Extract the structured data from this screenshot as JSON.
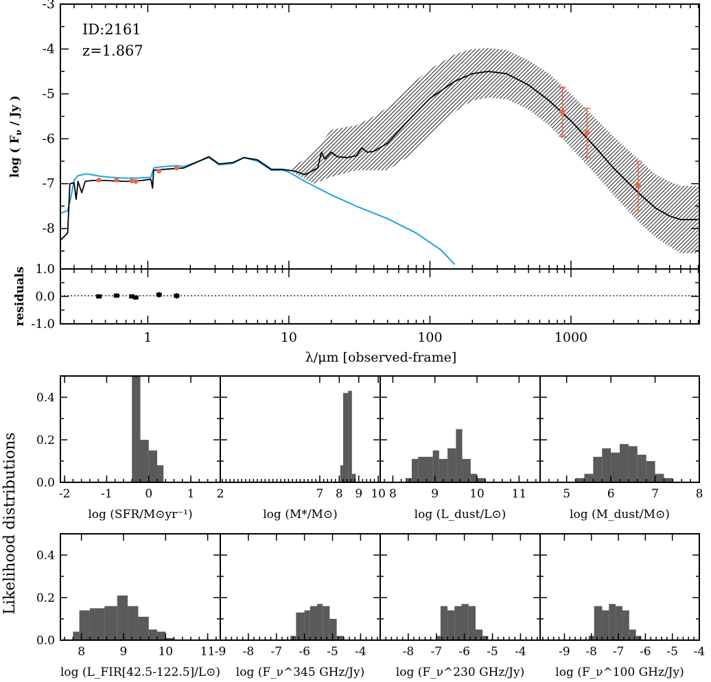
{
  "chart_data": {
    "type": "sed_fit",
    "sed": {
      "object_id": "ID:2161",
      "redshift": "z=1.867",
      "ylabel": "log ( F_ν / Jy )",
      "ylabel_parts": {
        "pre": "log ( F",
        "sub": "ν",
        "post": " / Jy )"
      },
      "ylim": [
        -8.9,
        -3
      ],
      "yticks": [
        "-3",
        "-4",
        "-5",
        "-6",
        "-7",
        "-8"
      ],
      "xlim_log10": [
        -0.62,
        3.91
      ],
      "xlabel": "λ/μm  [observed-frame]",
      "xticks": [
        {
          "v": 1,
          "label": "1"
        },
        {
          "v": 10,
          "label": "10"
        },
        {
          "v": 100,
          "label": "100"
        },
        {
          "v": 1000,
          "label": "1000"
        }
      ],
      "colors": {
        "total": "#000000",
        "stellar": "#1fa2e0",
        "points": "#e8684a",
        "band": "#4a4a4a"
      },
      "stellar_curve": [
        [
          0.24,
          -7.66
        ],
        [
          0.27,
          -7.6
        ],
        [
          0.285,
          -7.3
        ],
        [
          0.3,
          -6.92
        ],
        [
          0.32,
          -6.82
        ],
        [
          0.37,
          -6.78
        ],
        [
          0.4,
          -6.8
        ],
        [
          0.45,
          -6.83
        ],
        [
          0.55,
          -6.86
        ],
        [
          0.7,
          -6.88
        ],
        [
          0.9,
          -6.87
        ],
        [
          1.05,
          -6.86
        ],
        [
          1.1,
          -6.65
        ],
        [
          1.3,
          -6.62
        ],
        [
          1.6,
          -6.6
        ],
        [
          1.8,
          -6.62
        ],
        [
          2.3,
          -6.5
        ],
        [
          2.7,
          -6.42
        ],
        [
          3.2,
          -6.58
        ],
        [
          4.0,
          -6.55
        ],
        [
          4.8,
          -6.42
        ],
        [
          6.0,
          -6.5
        ],
        [
          7.5,
          -6.7
        ],
        [
          9,
          -6.7
        ],
        [
          10,
          -6.74
        ],
        [
          13,
          -6.95
        ],
        [
          20,
          -7.25
        ],
        [
          30,
          -7.5
        ],
        [
          50,
          -7.78
        ],
        [
          80,
          -8.1
        ],
        [
          120,
          -8.48
        ],
        [
          150,
          -8.8
        ]
      ],
      "total_curve": [
        [
          0.24,
          -8.26
        ],
        [
          0.27,
          -8.1
        ],
        [
          0.28,
          -7.0
        ],
        [
          0.3,
          -6.98
        ],
        [
          0.31,
          -7.35
        ],
        [
          0.32,
          -6.95
        ],
        [
          0.34,
          -7.2
        ],
        [
          0.36,
          -6.95
        ],
        [
          0.4,
          -6.93
        ],
        [
          0.5,
          -6.93
        ],
        [
          0.7,
          -6.95
        ],
        [
          0.9,
          -6.93
        ],
        [
          1.05,
          -6.9
        ],
        [
          1.08,
          -7.1
        ],
        [
          1.1,
          -6.7
        ],
        [
          1.3,
          -6.68
        ],
        [
          1.6,
          -6.66
        ],
        [
          1.8,
          -6.65
        ],
        [
          2.3,
          -6.5
        ],
        [
          2.7,
          -6.4
        ],
        [
          3.2,
          -6.56
        ],
        [
          4.0,
          -6.53
        ],
        [
          4.8,
          -6.42
        ],
        [
          6.0,
          -6.47
        ],
        [
          7.5,
          -6.68
        ],
        [
          9,
          -6.68
        ],
        [
          10,
          -6.7
        ],
        [
          11,
          -6.72
        ],
        [
          13,
          -6.8
        ],
        [
          16,
          -6.65
        ],
        [
          17,
          -6.3
        ],
        [
          18,
          -6.45
        ],
        [
          20,
          -6.3
        ],
        [
          22,
          -6.4
        ],
        [
          26,
          -6.42
        ],
        [
          30,
          -6.38
        ],
        [
          33,
          -6.2
        ],
        [
          36,
          -6.3
        ],
        [
          40,
          -6.28
        ],
        [
          50,
          -6.1
        ],
        [
          70,
          -5.6
        ],
        [
          100,
          -5.1
        ],
        [
          150,
          -4.72
        ],
        [
          200,
          -4.55
        ],
        [
          260,
          -4.5
        ],
        [
          350,
          -4.55
        ],
        [
          500,
          -4.8
        ],
        [
          700,
          -5.15
        ],
        [
          1000,
          -5.6
        ],
        [
          1500,
          -6.2
        ],
        [
          2000,
          -6.65
        ],
        [
          3000,
          -7.2
        ],
        [
          4000,
          -7.55
        ],
        [
          5000,
          -7.72
        ],
        [
          6000,
          -7.8
        ],
        [
          8000,
          -7.8
        ]
      ],
      "uncertainty_band": {
        "x": [
          10,
          15,
          20,
          30,
          40,
          50,
          70,
          100,
          150,
          200,
          260,
          350,
          500,
          700,
          1000,
          1500,
          2000,
          3000,
          4000,
          5000,
          6000,
          8000
        ],
        "upper": [
          -6.7,
          -6.3,
          -5.8,
          -5.7,
          -5.5,
          -5.3,
          -4.85,
          -4.45,
          -4.12,
          -4.0,
          -3.98,
          -4.02,
          -4.25,
          -4.55,
          -5.0,
          -5.55,
          -5.95,
          -6.45,
          -6.8,
          -6.95,
          -7.05,
          -7.05
        ],
        "lower": [
          -6.7,
          -7.0,
          -6.85,
          -6.7,
          -6.7,
          -6.7,
          -6.4,
          -5.95,
          -5.4,
          -5.15,
          -5.08,
          -5.12,
          -5.35,
          -5.7,
          -6.2,
          -6.8,
          -7.25,
          -7.85,
          -8.2,
          -8.4,
          -8.55,
          -8.55
        ]
      },
      "optical_points": [
        {
          "x": 0.45,
          "y": -6.92
        },
        {
          "x": 0.6,
          "y": -6.92
        },
        {
          "x": 0.77,
          "y": -6.94
        },
        {
          "x": 0.82,
          "y": -6.95
        },
        {
          "x": 1.2,
          "y": -6.72
        },
        {
          "x": 1.6,
          "y": -6.65
        }
      ],
      "fir_points": [
        {
          "x": 870,
          "y": -5.4,
          "err": 0.55
        },
        {
          "x": 1300,
          "y": -5.87,
          "err": 0.55
        },
        {
          "x": 3000,
          "y": -7.05,
          "err": 0.55
        }
      ]
    },
    "residuals": {
      "ylabel": "residuals",
      "ylim": [
        -1.0,
        1.0
      ],
      "yticks": [
        "1.0",
        "0.0",
        "-1.0"
      ],
      "points": [
        {
          "x": 0.45,
          "y": 0.0,
          "err": 0.06
        },
        {
          "x": 0.6,
          "y": 0.03,
          "err": 0.06
        },
        {
          "x": 0.77,
          "y": 0.0,
          "err": 0.06
        },
        {
          "x": 0.82,
          "y": -0.04,
          "err": 0.06
        },
        {
          "x": 1.2,
          "y": 0.06,
          "err": 0.1
        },
        {
          "x": 1.6,
          "y": 0.02,
          "err": 0.1
        }
      ]
    },
    "likelihood": {
      "ylabel": "Likelihood distributions",
      "ylim": [
        0,
        0.5
      ],
      "yticks": [
        "0.4",
        "0.2",
        "0.0"
      ],
      "panels": [
        {
          "xlabel": "log (SFR/M⊙yr⁻¹)",
          "xlim": [
            -2.1,
            1.7
          ],
          "ticks": [
            "-2",
            "-1",
            "0",
            "1"
          ],
          "tick_values": [
            -2,
            -1,
            0,
            1
          ],
          "bins": [
            [
              -0.4,
              -0.2,
              0.5
            ],
            [
              -0.2,
              0.0,
              0.2
            ],
            [
              0.0,
              0.2,
              0.15
            ],
            [
              0.2,
              0.35,
              0.08
            ]
          ]
        },
        {
          "xlabel": "log (M*/M⊙)",
          "xlim": [
            1.9,
            10.1
          ],
          "ticks": [
            "2",
            "7",
            "8",
            "9",
            "10"
          ],
          "tick_values": [
            1.9,
            7,
            8,
            9,
            10
          ],
          "bins": [
            [
              8.05,
              8.2,
              0.08
            ],
            [
              8.2,
              8.45,
              0.42
            ],
            [
              8.45,
              8.65,
              0.43
            ],
            [
              8.65,
              8.85,
              0.04
            ]
          ]
        },
        {
          "xlabel": "log (L_dust/L⊙)",
          "xlim": [
            7.7,
            11.5
          ],
          "ticks": [
            "8",
            "9",
            "10",
            "11"
          ],
          "tick_values": [
            8,
            9,
            10,
            11
          ],
          "bins": [
            [
              8.3,
              8.45,
              0.02
            ],
            [
              8.45,
              8.6,
              0.11
            ],
            [
              8.6,
              8.95,
              0.12
            ],
            [
              8.95,
              9.1,
              0.15
            ],
            [
              9.1,
              9.3,
              0.11
            ],
            [
              9.3,
              9.5,
              0.16
            ],
            [
              9.5,
              9.65,
              0.25
            ],
            [
              9.65,
              9.85,
              0.11
            ],
            [
              9.85,
              10.0,
              0.04
            ],
            [
              10.0,
              10.2,
              0.02
            ]
          ]
        },
        {
          "xlabel": "log (M_dust/M⊙)",
          "xlim": [
            4.4,
            8.0
          ],
          "ticks": [
            "5",
            "6",
            "7",
            "8"
          ],
          "tick_values": [
            5,
            6,
            7,
            8
          ],
          "bins": [
            [
              5.2,
              5.4,
              0.02
            ],
            [
              5.4,
              5.6,
              0.04
            ],
            [
              5.6,
              5.8,
              0.12
            ],
            [
              5.8,
              6.0,
              0.16
            ],
            [
              6.0,
              6.2,
              0.14
            ],
            [
              6.2,
              6.4,
              0.18
            ],
            [
              6.4,
              6.6,
              0.17
            ],
            [
              6.6,
              6.8,
              0.13
            ],
            [
              6.8,
              7.0,
              0.1
            ],
            [
              7.0,
              7.2,
              0.04
            ],
            [
              7.2,
              7.4,
              0.02
            ]
          ]
        },
        {
          "xlabel": "log (L_FIR[42.5-122.5]/L⊙)",
          "xlim": [
            7.5,
            11.3
          ],
          "ticks": [
            "8",
            "9",
            "10",
            "11"
          ],
          "tick_values": [
            8,
            9,
            10,
            11
          ],
          "bins": [
            [
              7.8,
              7.95,
              0.04
            ],
            [
              7.95,
              8.2,
              0.14
            ],
            [
              8.2,
              8.55,
              0.15
            ],
            [
              8.55,
              8.85,
              0.16
            ],
            [
              8.85,
              9.1,
              0.21
            ],
            [
              9.1,
              9.35,
              0.16
            ],
            [
              9.35,
              9.6,
              0.11
            ],
            [
              9.6,
              9.8,
              0.05
            ],
            [
              9.8,
              10.0,
              0.04
            ],
            [
              10.0,
              10.2,
              0.01
            ]
          ]
        },
        {
          "xlabel": "log (F_ν^345 GHz/Jy)",
          "xlim": [
            -9.0,
            -3.3
          ],
          "ticks": [
            "-9",
            "-8",
            "-7",
            "-6",
            "-5",
            "-4"
          ],
          "tick_values": [
            -9,
            -8,
            -7,
            -6,
            -5,
            -4
          ],
          "bins": [
            [
              -6.5,
              -6.3,
              0.02
            ],
            [
              -6.3,
              -6.0,
              0.13
            ],
            [
              -6.0,
              -5.8,
              0.14
            ],
            [
              -5.8,
              -5.55,
              0.16
            ],
            [
              -5.55,
              -5.35,
              0.17
            ],
            [
              -5.35,
              -5.1,
              0.16
            ],
            [
              -5.1,
              -4.85,
              0.1
            ],
            [
              -4.85,
              -4.6,
              0.02
            ]
          ]
        },
        {
          "xlabel": "log (F_ν^230 GHz/Jy)",
          "xlim": [
            -9.0,
            -3.3
          ],
          "ticks": [
            "-8",
            "-7",
            "-6",
            "-5",
            "-4"
          ],
          "tick_values": [
            -8,
            -7,
            -6,
            -5,
            -4
          ],
          "bins": [
            [
              -7.0,
              -6.85,
              0.02
            ],
            [
              -6.85,
              -6.6,
              0.16
            ],
            [
              -6.6,
              -6.35,
              0.14
            ],
            [
              -6.35,
              -6.1,
              0.16
            ],
            [
              -6.1,
              -5.85,
              0.17
            ],
            [
              -5.85,
              -5.6,
              0.16
            ],
            [
              -5.6,
              -5.35,
              0.05
            ],
            [
              -5.35,
              -5.15,
              0.02
            ]
          ]
        },
        {
          "xlabel": "log (F_ν^100 GHz/Jy)",
          "xlim": [
            -9.9,
            -4.0
          ],
          "ticks": [
            "-9",
            "-8",
            "-7",
            "-6",
            "-5",
            "-4"
          ],
          "tick_values": [
            -9,
            -8,
            -7,
            -6,
            -5,
            -4
          ],
          "bins": [
            [
              -8.1,
              -7.9,
              0.02
            ],
            [
              -7.9,
              -7.6,
              0.16
            ],
            [
              -7.6,
              -7.35,
              0.14
            ],
            [
              -7.35,
              -7.1,
              0.17
            ],
            [
              -7.1,
              -6.85,
              0.16
            ],
            [
              -6.85,
              -6.6,
              0.14
            ],
            [
              -6.6,
              -6.35,
              0.05
            ],
            [
              -6.35,
              -6.15,
              0.02
            ]
          ]
        }
      ]
    }
  }
}
